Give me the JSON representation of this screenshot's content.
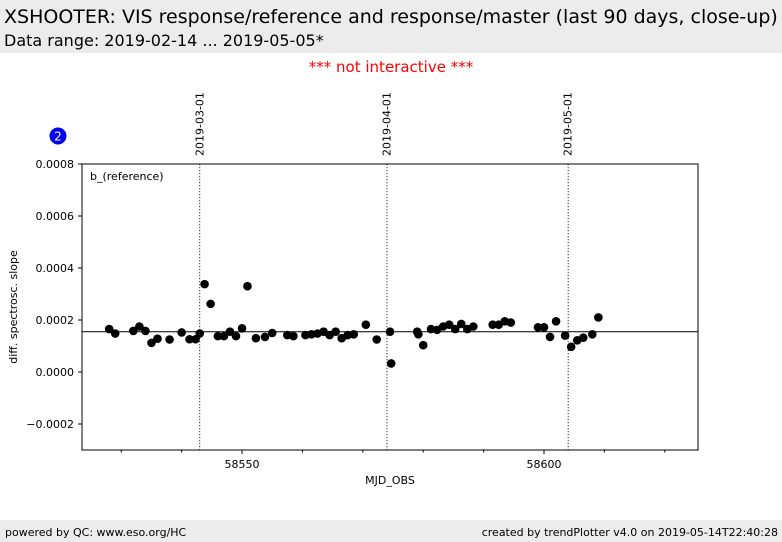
{
  "header": {
    "title": "XSHOOTER: VIS response/reference and response/master (last 90 days, close-up)",
    "subtitle": "Data range: 2019-02-14 ... 2019-05-05*"
  },
  "notice": "*** not interactive ***",
  "badge": "2",
  "footer": {
    "left": "powered by QC: www.eso.org/HC",
    "right": "created by trendPlotter v4.0 on 2019-05-14T22:40:28"
  },
  "chart_data": {
    "type": "scatter",
    "title": "",
    "xlabel": "MJD_OBS",
    "ylabel": "diff. spectrosc. slope",
    "annotation": "b_(reference)",
    "xlim": [
      58523.5,
      58625.5
    ],
    "ylim": [
      -0.0003,
      0.0008
    ],
    "xticks": [
      58550,
      58600
    ],
    "xtick_labels": [
      "58550",
      "58600"
    ],
    "xminor_ticks": [
      58530,
      58540,
      58560,
      58570,
      58580,
      58590,
      58610,
      58620
    ],
    "yticks": [
      -0.0002,
      0.0,
      0.0002,
      0.0004,
      0.0006,
      0.0008
    ],
    "ytick_labels": [
      "−0.0002",
      "0.0000",
      "0.0002",
      "0.0004",
      "0.0006",
      "0.0008"
    ],
    "reference_line": 0.000155,
    "date_markers": [
      {
        "x": 58543.0,
        "label": "2019-03-01"
      },
      {
        "x": 58574.0,
        "label": "2019-04-01"
      },
      {
        "x": 58604.0,
        "label": "2019-05-01"
      }
    ],
    "grid": false,
    "series": [
      {
        "color": "#000000",
        "points": [
          [
            58528.0,
            0.000165
          ],
          [
            58529.0,
            0.000148
          ],
          [
            58532.0,
            0.000158
          ],
          [
            58533.0,
            0.000175
          ],
          [
            58534.0,
            0.000158
          ],
          [
            58535.0,
            0.000112
          ],
          [
            58536.0,
            0.000128
          ],
          [
            58538.0,
            0.000125
          ],
          [
            58540.0,
            0.000152
          ],
          [
            58541.3,
            0.000126
          ],
          [
            58542.3,
            0.000126
          ],
          [
            58543.0,
            0.000148
          ],
          [
            58543.8,
            0.000338
          ],
          [
            58544.8,
            0.000262
          ],
          [
            58546.0,
            0.000138
          ],
          [
            58547.0,
            0.000138
          ],
          [
            58548.0,
            0.000155
          ],
          [
            58549.0,
            0.000138
          ],
          [
            58550.0,
            0.000168
          ],
          [
            58550.9,
            0.00033
          ],
          [
            58552.3,
            0.00013
          ],
          [
            58553.8,
            0.000135
          ],
          [
            58555.0,
            0.00015
          ],
          [
            58557.5,
            0.000142
          ],
          [
            58558.5,
            0.000138
          ],
          [
            58560.5,
            0.000142
          ],
          [
            58561.5,
            0.000145
          ],
          [
            58562.5,
            0.000148
          ],
          [
            58563.5,
            0.000155
          ],
          [
            58564.5,
            0.000142
          ],
          [
            58565.5,
            0.000155
          ],
          [
            58566.5,
            0.00013
          ],
          [
            58567.5,
            0.000142
          ],
          [
            58568.5,
            0.000145
          ],
          [
            58570.5,
            0.000182
          ],
          [
            58572.3,
            0.000125
          ],
          [
            58574.5,
            0.000155
          ],
          [
            58574.7,
            3.3e-05
          ],
          [
            58579.0,
            0.000155
          ],
          [
            58579.2,
            0.000145
          ],
          [
            58580.0,
            0.000103
          ],
          [
            58581.3,
            0.000165
          ],
          [
            58582.3,
            0.000162
          ],
          [
            58583.3,
            0.000175
          ],
          [
            58584.3,
            0.000182
          ],
          [
            58585.3,
            0.000165
          ],
          [
            58586.3,
            0.000185
          ],
          [
            58587.3,
            0.000165
          ],
          [
            58588.3,
            0.000175
          ],
          [
            58591.5,
            0.000182
          ],
          [
            58592.5,
            0.000182
          ],
          [
            58593.5,
            0.000195
          ],
          [
            58594.5,
            0.00019
          ],
          [
            58599.0,
            0.000172
          ],
          [
            58600.0,
            0.000172
          ],
          [
            58601.0,
            0.000135
          ],
          [
            58602.0,
            0.000195
          ],
          [
            58603.5,
            0.00014
          ],
          [
            58604.5,
            9.7e-05
          ],
          [
            58605.5,
            0.000122
          ],
          [
            58606.5,
            0.000132
          ],
          [
            58608.0,
            0.000145
          ],
          [
            58609.0,
            0.00021
          ]
        ]
      }
    ]
  }
}
